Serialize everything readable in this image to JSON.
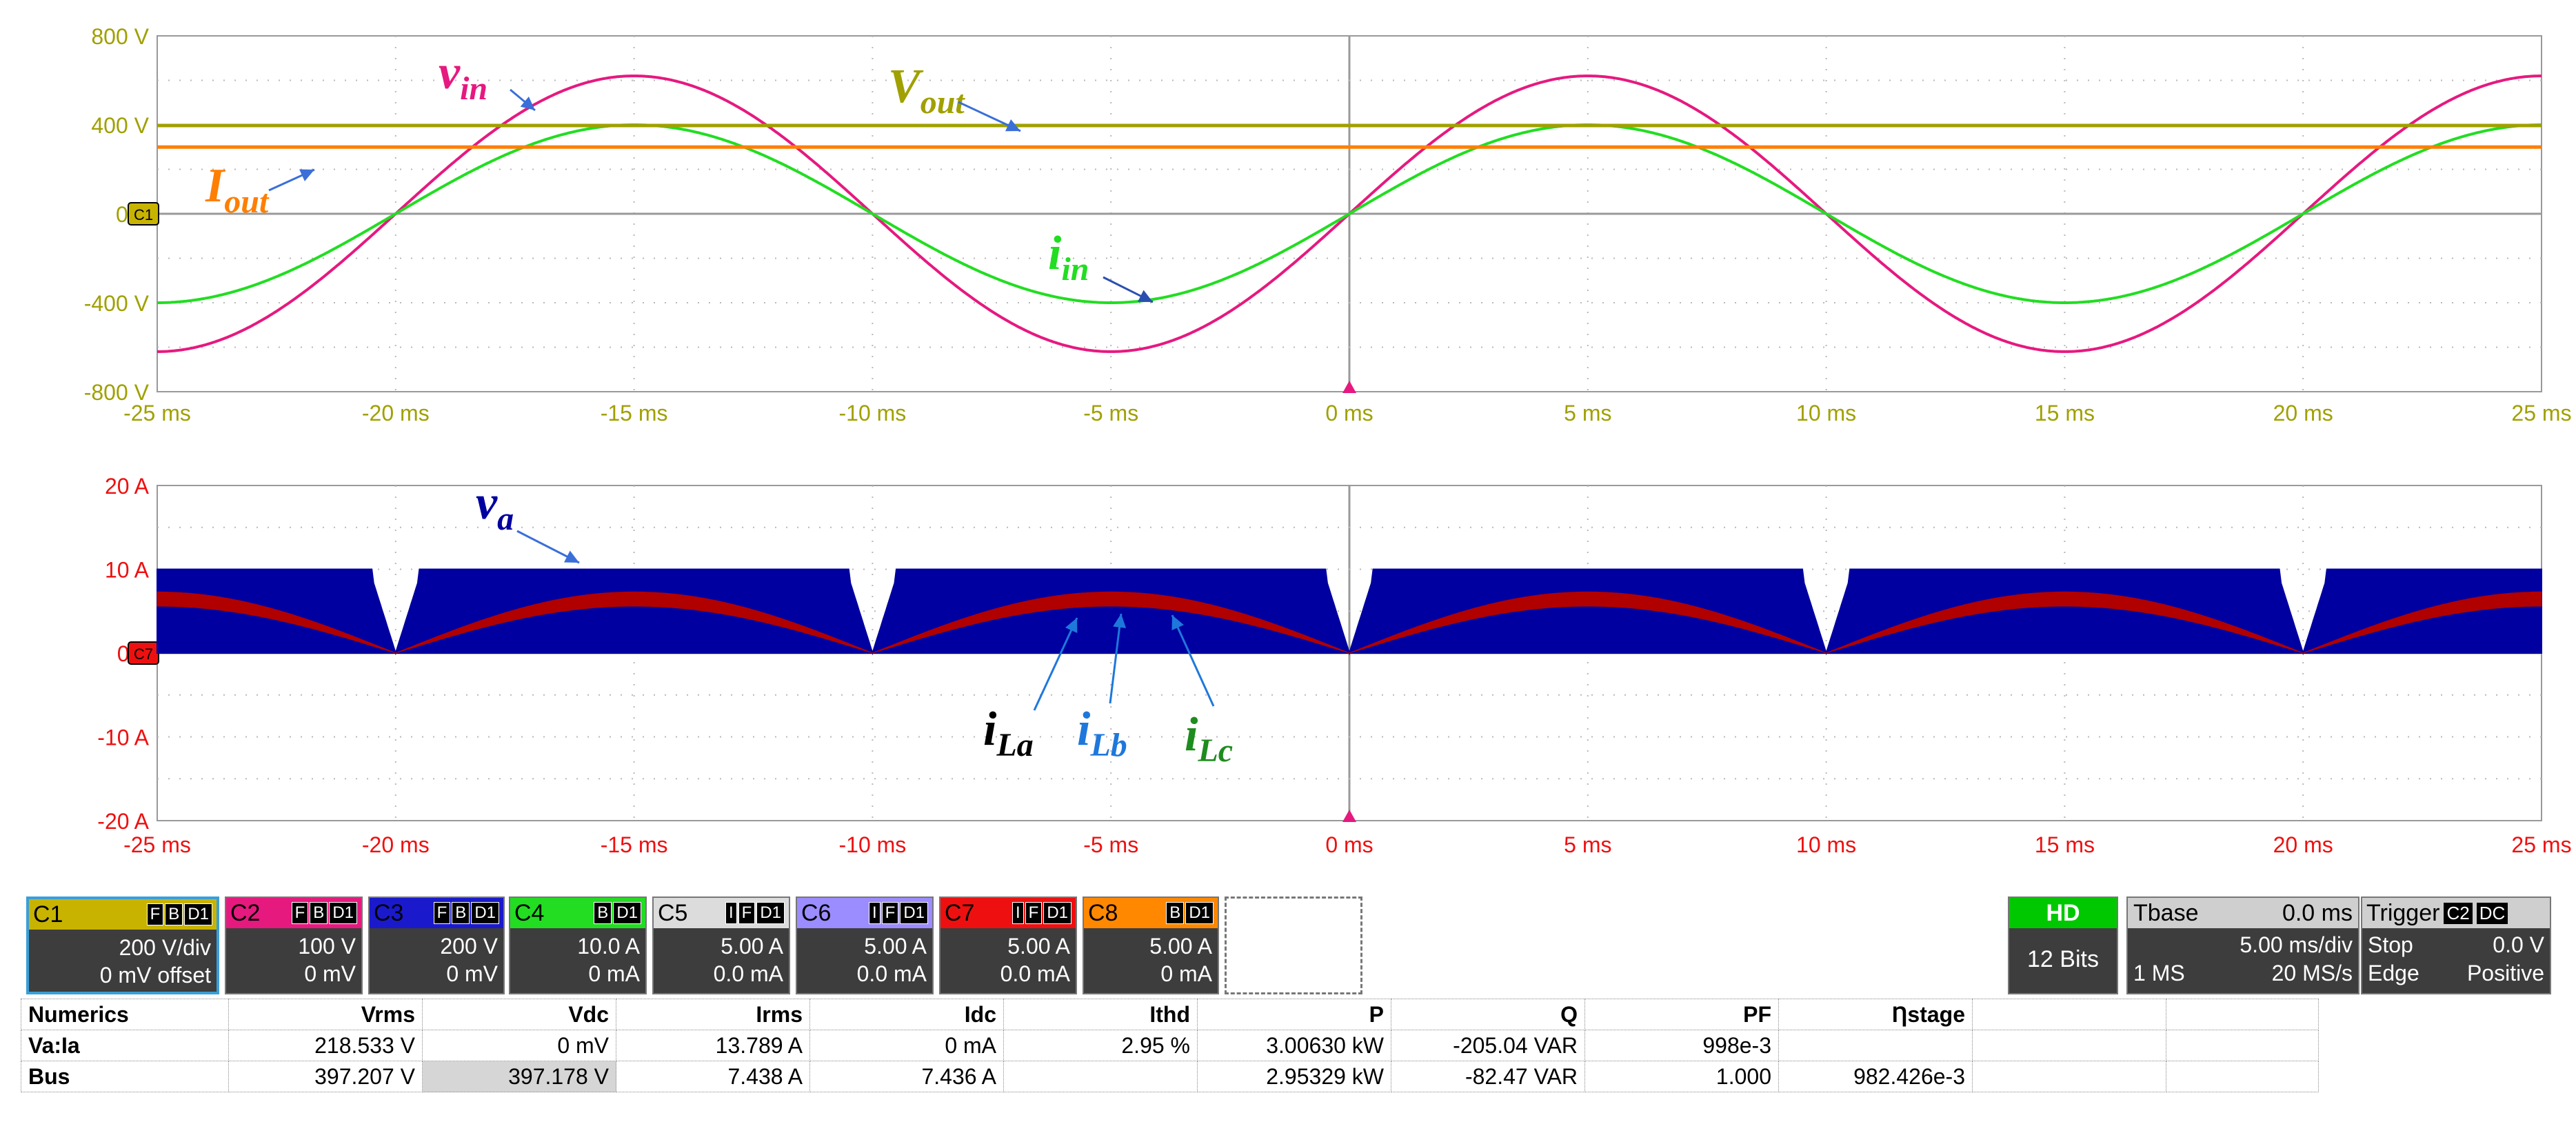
{
  "chart_data": [
    {
      "type": "line",
      "title": "",
      "xlabel": "",
      "ylabel": "",
      "x_unit": "ms",
      "xlim": [
        -25,
        25
      ],
      "ylim": [
        -800,
        800
      ],
      "x_ticks": [
        "-25 ms",
        "-20 ms",
        "-15 ms",
        "-10 ms",
        "-5 ms",
        "0 ms",
        "5 ms",
        "10 ms",
        "15 ms",
        "20 ms",
        "25 ms"
      ],
      "y_ticks": [
        "800 V",
        "400 V",
        "0 V",
        "-400 V",
        "-800 V"
      ],
      "grid": true,
      "channel_marker": "C1",
      "series": [
        {
          "name": "v_in",
          "label_main": "v",
          "label_sub": "in",
          "color": "#e6197f",
          "waveform": "sine",
          "amplitude": 620,
          "period_ms": 20,
          "phase_ms": 0
        },
        {
          "name": "i_in",
          "label_main": "i",
          "label_sub": "in",
          "color": "#22dd22",
          "waveform": "sine",
          "amplitude": 400,
          "period_ms": 20,
          "phase_ms": 0
        },
        {
          "name": "V_out",
          "label_main": "V",
          "label_sub": "out",
          "color": "#a0a000",
          "waveform": "dc",
          "level": 397
        },
        {
          "name": "I_out",
          "label_main": "I",
          "label_sub": "out",
          "color": "#ff7f00",
          "waveform": "dc",
          "level": 300
        }
      ]
    },
    {
      "type": "area",
      "title": "",
      "xlabel": "",
      "ylabel": "",
      "x_unit": "ms",
      "xlim": [
        -25,
        25
      ],
      "ylim": [
        -20,
        20
      ],
      "x_ticks": [
        "-25 ms",
        "-20 ms",
        "-15 ms",
        "-10 ms",
        "-5 ms",
        "0 ms",
        "5 ms",
        "10 ms",
        "15 ms",
        "20 ms",
        "25 ms"
      ],
      "y_ticks": [
        "20 A",
        "10 A",
        "0 A",
        "-10 A",
        "-20 A"
      ],
      "grid": true,
      "channel_marker": "C7",
      "series": [
        {
          "name": "v_a",
          "label_main": "v",
          "label_sub": "a",
          "color": "#0000a0",
          "waveform": "pwm_envelope",
          "level": 10,
          "notch_width_ms": 1.0
        },
        {
          "name": "i_La",
          "label_main": "i",
          "label_sub": "La",
          "color": "#b00000",
          "waveform": "rectified_sine_band",
          "peak_upper": 7.3,
          "peak_lower": 5.6,
          "period_ms": 10
        }
      ],
      "annotations": [
        {
          "name": "i_La",
          "label_main": "i",
          "label_sub": "La",
          "color": "#000000"
        },
        {
          "name": "i_Lb",
          "label_main": "i",
          "label_sub": "Lb",
          "color": "#1e78dc"
        },
        {
          "name": "i_Lc",
          "label_main": "i",
          "label_sub": "Lc",
          "color": "#1e8c1e"
        }
      ]
    }
  ],
  "channels": [
    {
      "id": "C1",
      "name": "C1",
      "flags": [
        "F",
        "B",
        "D1"
      ],
      "color": "#c8b400",
      "scale": "200 V/div",
      "offset": "0 mV offset",
      "selected": true
    },
    {
      "id": "C2",
      "name": "C2",
      "flags": [
        "F",
        "B",
        "D1"
      ],
      "color": "#e6197f",
      "scale": "100 V",
      "offset": "0 mV"
    },
    {
      "id": "C3",
      "name": "C3",
      "flags": [
        "F",
        "B",
        "D1"
      ],
      "color": "#1a1acc",
      "scale": "200 V",
      "offset": "0 mV"
    },
    {
      "id": "C4",
      "name": "C4",
      "flags": [
        "B",
        "D1"
      ],
      "color": "#22dd22",
      "scale": "10.0 A",
      "offset": "0 mA"
    },
    {
      "id": "C5",
      "name": "C5",
      "flags": [
        "I",
        "F",
        "D1"
      ],
      "color": "#dcdcdc",
      "scale": "5.00 A",
      "offset": "0.0 mA"
    },
    {
      "id": "C6",
      "name": "C6",
      "flags": [
        "I",
        "F",
        "D1"
      ],
      "color": "#9b8cff",
      "scale": "5.00 A",
      "offset": "0.0 mA"
    },
    {
      "id": "C7",
      "name": "C7",
      "flags": [
        "I",
        "F",
        "D1"
      ],
      "color": "#ee1010",
      "scale": "5.00 A",
      "offset": "0.0 mA"
    },
    {
      "id": "C8",
      "name": "C8",
      "flags": [
        "B",
        "D1"
      ],
      "color": "#ff8800",
      "scale": "5.00 A",
      "offset": "0 mA"
    }
  ],
  "acquisition": {
    "mode": "HD",
    "bits": "12 Bits",
    "tbase_label": "Tbase",
    "tbase_value": "0.0 ms",
    "time_div": "5.00 ms/div",
    "memory": "1 MS",
    "sample_rate": "20 MS/s",
    "trigger_label": "Trigger",
    "trigger_source": "C2",
    "trigger_coupling": "DC",
    "trigger_mode": "Stop",
    "trigger_level": "0.0 V",
    "trigger_type": "Edge",
    "trigger_slope": "Positive"
  },
  "numerics": {
    "headers": [
      "Numerics",
      "Vrms",
      "Vdc",
      "Irms",
      "Idc",
      "Ithd",
      "P",
      "Q",
      "PF",
      "Ƞstage"
    ],
    "rows": [
      [
        "Va:Ia",
        "218.533 V",
        "0 mV",
        "13.789 A",
        "0 mA",
        "2.95 %",
        "3.00630 kW",
        "-205.04 VAR",
        "998e-3",
        ""
      ],
      [
        "Bus",
        "397.207 V",
        "397.178 V",
        "7.438 A",
        "7.436 A",
        "",
        "2.95329 kW",
        "-82.47 VAR",
        "1.000",
        "982.426e-3"
      ]
    ]
  },
  "colors": {
    "grid": "#b8b8b8",
    "tick_top": "#a0a000",
    "tick_bottom": "#ee1010",
    "plot_border": "#999999",
    "trigger_marker": "#e6197f"
  }
}
